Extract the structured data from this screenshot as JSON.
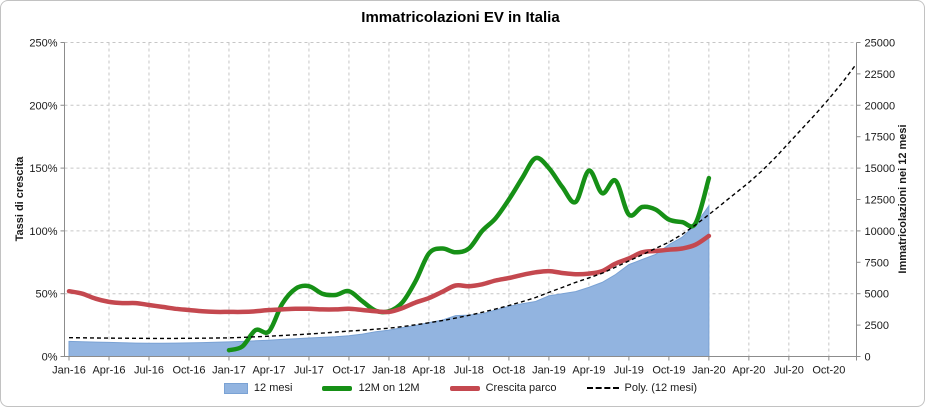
{
  "title": "Immatricolazioni EV in Italia",
  "axes": {
    "y_left": {
      "title": "Tassi di crescita",
      "ticks": [
        "0%",
        "50%",
        "100%",
        "150%",
        "200%",
        "250%"
      ]
    },
    "y_right": {
      "title": "Immatricolazioni nei 12 mesi",
      "ticks": [
        "0",
        "2500",
        "5000",
        "7500",
        "10000",
        "12500",
        "15000",
        "17500",
        "20000",
        "22500",
        "25000"
      ]
    },
    "x": {
      "labels": [
        "Jan-16",
        "Apr-16",
        "Jul-16",
        "Oct-16",
        "Jan-17",
        "Apr-17",
        "Jul-17",
        "Oct-17",
        "Jan-18",
        "Apr-18",
        "Jul-18",
        "Oct-18",
        "Jan-19",
        "Apr-19",
        "Jul-19",
        "Oct-19",
        "Jan-20",
        "Apr-20",
        "Jul-20",
        "Oct-20"
      ],
      "months_per_tick": 3
    }
  },
  "legend": [
    {
      "label": "12 mesi",
      "type": "area",
      "color": "#92b4e0",
      "edge": "#7aa2d4"
    },
    {
      "label": "12M on 12M",
      "type": "line",
      "color": "#169016",
      "edge": "#169016"
    },
    {
      "label": "Crescita parco",
      "type": "line",
      "color": "#c4484f",
      "edge": "#c4484f"
    },
    {
      "label": "Poly. (12 mesi)",
      "type": "dash",
      "color": "#000000",
      "edge": "#000000"
    }
  ],
  "chart_data": {
    "type": "line",
    "title": "Immatricolazioni EV in Italia",
    "x_unit": "month",
    "x_start": "Jan-16",
    "x_end_data": "Jan-20",
    "x_end_trend": "Dec-20",
    "ylim_left_pct": [
      0,
      250
    ],
    "ylim_right": [
      0,
      25000
    ],
    "grid": "both-dashed",
    "legend_position": "bottom",
    "series": [
      {
        "name": "12 mesi",
        "axis": "right",
        "style": "area",
        "start_month": 0,
        "values": [
          1200,
          1180,
          1150,
          1120,
          1090,
          1070,
          1060,
          1060,
          1070,
          1085,
          1105,
          1130,
          1160,
          1200,
          1250,
          1300,
          1360,
          1420,
          1470,
          1520,
          1580,
          1660,
          1780,
          1970,
          2100,
          2300,
          2470,
          2700,
          2900,
          3260,
          3300,
          3400,
          3700,
          4000,
          4200,
          4380,
          4830,
          5000,
          5170,
          5500,
          5900,
          6530,
          7320,
          7720,
          8120,
          8900,
          9500,
          10500,
          12000
        ]
      },
      {
        "name": "12M on 12M",
        "axis": "left",
        "style": "line",
        "start_month": 12,
        "values_pct": [
          5,
          8,
          21,
          20,
          42,
          54,
          56,
          50,
          49,
          52,
          44,
          36.5,
          36,
          43,
          60,
          82,
          86,
          83,
          86,
          100,
          110,
          125,
          142,
          158,
          150,
          135,
          123,
          148,
          130,
          140,
          113,
          119,
          117,
          109,
          107,
          106,
          142
        ]
      },
      {
        "name": "Crescita parco",
        "axis": "left",
        "style": "line",
        "start_month": 0,
        "values_pct": [
          52,
          50,
          46,
          43.5,
          42.5,
          42.5,
          41,
          39.5,
          38,
          37,
          36,
          35.5,
          35.5,
          35.5,
          36,
          37,
          37.5,
          38,
          38,
          37.5,
          37.5,
          38,
          37,
          36,
          35.5,
          38.5,
          43,
          46.5,
          51.5,
          56.5,
          56,
          57.5,
          60.5,
          62.5,
          65,
          67,
          68,
          66.5,
          65.5,
          66,
          68,
          74,
          78,
          83,
          84,
          85,
          86,
          89,
          96
        ]
      },
      {
        "name": "Poly. (12 mesi)",
        "axis": "right",
        "style": "dashed-trend",
        "start_month": 0,
        "values": [
          1500,
          1487,
          1475,
          1464,
          1455,
          1447,
          1441,
          1440,
          1443,
          1450,
          1460,
          1470,
          1480,
          1520,
          1565,
          1615,
          1670,
          1730,
          1795,
          1865,
          1940,
          2020,
          2095,
          2170,
          2250,
          2380,
          2520,
          2680,
          2860,
          3060,
          3280,
          3520,
          3780,
          4060,
          4360,
          4700,
          5100,
          5490,
          5900,
          6260,
          6630,
          7120,
          7610,
          8100,
          8600,
          9100,
          9730,
          10480,
          11300,
          12150,
          13000,
          13850,
          14800,
          15850,
          17000,
          18150,
          19300,
          20500,
          21800,
          23200
        ]
      }
    ]
  }
}
